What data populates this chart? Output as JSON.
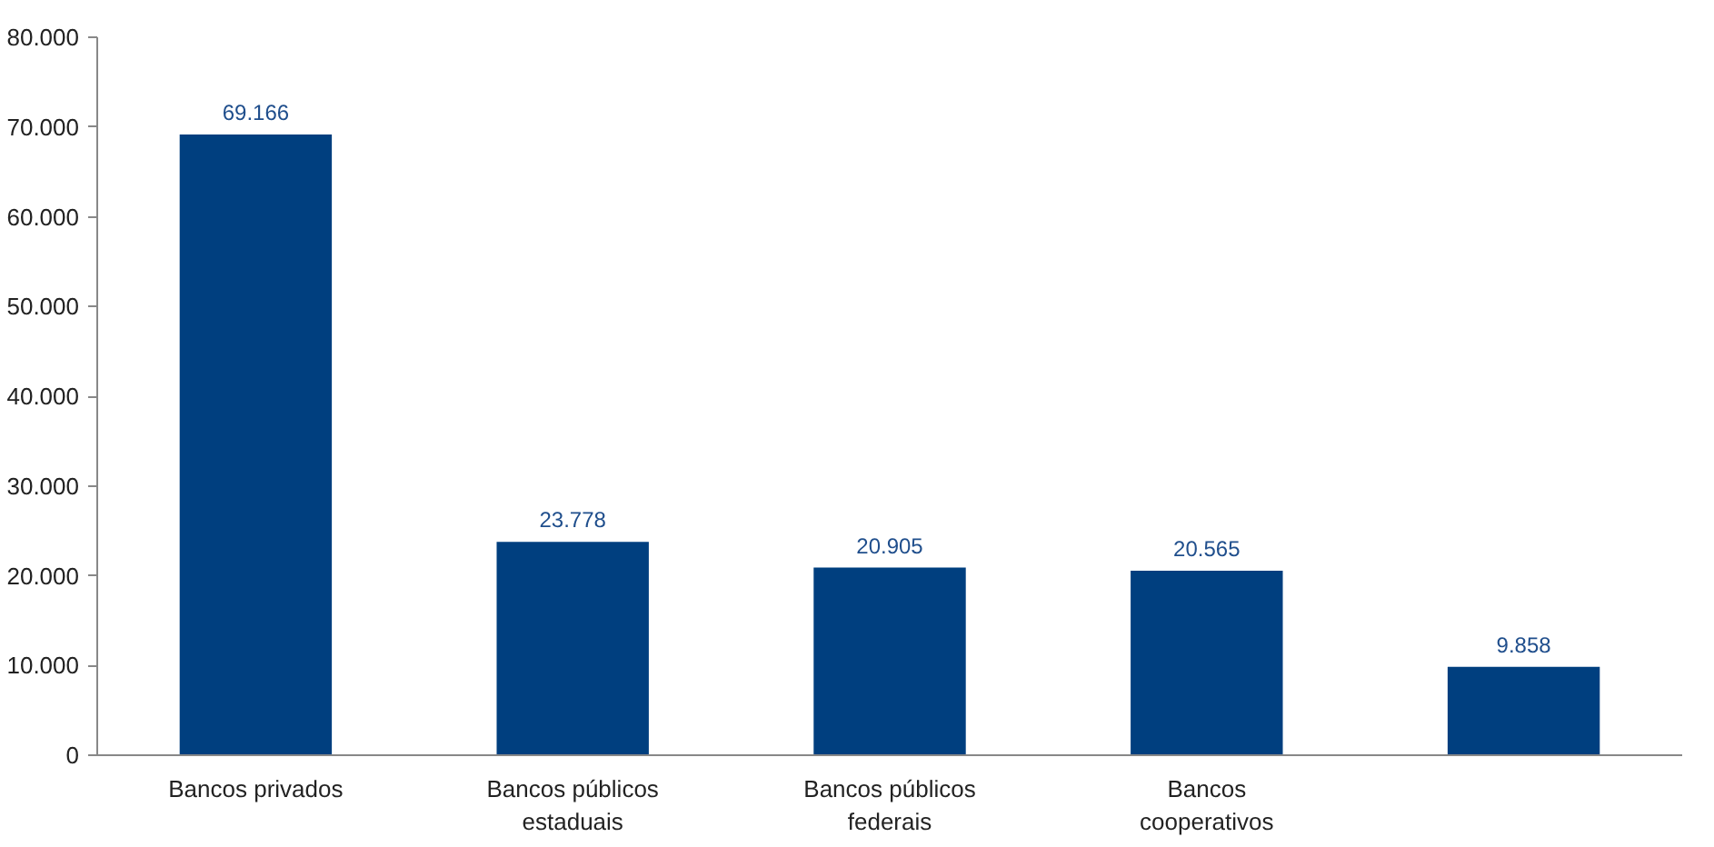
{
  "chart_data": {
    "type": "bar",
    "categories": [
      "Bancos privados",
      "Bancos públicos estaduais",
      "Bancos públicos federais",
      "Bancos cooperativos",
      null
    ],
    "values": [
      69166,
      23778,
      20905,
      20565,
      9858
    ],
    "color": "#003f7f",
    "value_labels": [
      "69.166",
      "23.778",
      "20.905",
      "20.565",
      "9.858"
    ],
    "ylim": [
      0,
      80000
    ],
    "yticks": [
      {
        "value": 0,
        "label": "0"
      },
      {
        "value": 10000,
        "label": "10.000"
      },
      {
        "value": 20000,
        "label": "20.000"
      },
      {
        "value": 30000,
        "label": "30.000"
      },
      {
        "value": 40000,
        "label": "40.000"
      },
      {
        "value": 50000,
        "label": "50.000"
      },
      {
        "value": 60000,
        "label": "60.000"
      },
      {
        "value": 70000,
        "label": "70.000"
      },
      {
        "value": 80000,
        "label": "80.000"
      }
    ],
    "grid": false
  }
}
